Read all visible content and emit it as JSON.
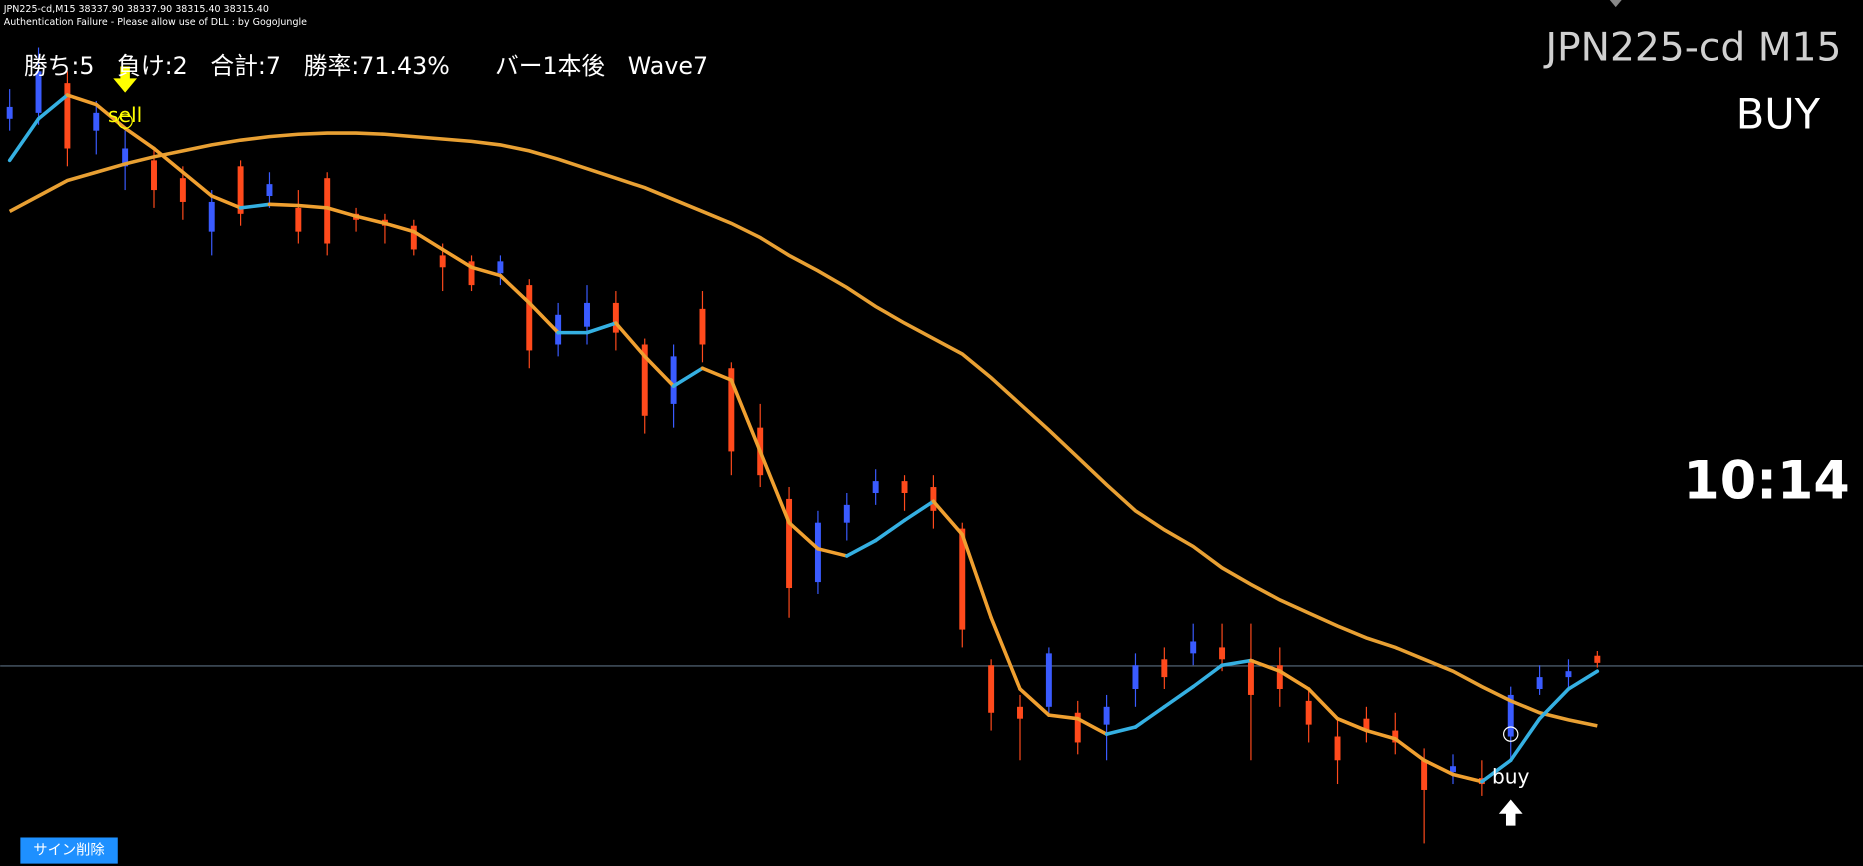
{
  "header": {
    "symbol_line": "JPN225-cd,M15  38337.90 38337.90 38315.40 38315.40",
    "notice": "Authentication Failure - Please allow use of DLL : by GogoJungle"
  },
  "stats": "勝ち:5   負け:2   合計:7   勝率:71.43%      バー1本後   Wave7",
  "symbol": "JPN225-cd M15",
  "signal": "BUY",
  "timer": "10:14",
  "button": "サイン削除",
  "chart_data": {
    "type": "candlestick",
    "open": [
      38776,
      38781,
      38806,
      38766,
      38736,
      38741,
      38726,
      38681,
      38736,
      38711,
      38701,
      38726,
      38696,
      38691,
      38686,
      38661,
      38656,
      38646,
      38636,
      38586,
      38601,
      38621,
      38586,
      38536,
      38616,
      38566,
      38516,
      38456,
      38386,
      38436,
      38461,
      38471,
      38466,
      38431,
      38316,
      38281,
      38281,
      38276,
      38266,
      38296,
      38321,
      38326,
      38331,
      38321,
      38316,
      38286,
      38256,
      38271,
      38261,
      38236,
      38226,
      38221,
      38256,
      38296,
      38306,
      38324
    ],
    "high": [
      38801,
      38836,
      38816,
      38791,
      38766,
      38751,
      38736,
      38716,
      38741,
      38731,
      38716,
      38731,
      38701,
      38696,
      38691,
      38671,
      38661,
      38661,
      38641,
      38621,
      38636,
      38631,
      38591,
      38586,
      38631,
      38571,
      38536,
      38466,
      38446,
      38461,
      38481,
      38476,
      38476,
      38436,
      38321,
      38291,
      38331,
      38286,
      38291,
      38326,
      38331,
      38351,
      38351,
      38351,
      38331,
      38296,
      38271,
      38281,
      38276,
      38246,
      38241,
      38236,
      38298,
      38316,
      38321,
      38328
    ],
    "low": [
      38766,
      38771,
      38736,
      38746,
      38716,
      38701,
      38691,
      38661,
      38686,
      38701,
      38671,
      38661,
      38681,
      38671,
      38661,
      38631,
      38631,
      38636,
      38566,
      38576,
      38586,
      38581,
      38511,
      38516,
      38571,
      38476,
      38466,
      38356,
      38376,
      38421,
      38451,
      38446,
      38431,
      38331,
      38261,
      38236,
      38276,
      38241,
      38236,
      38281,
      38296,
      38316,
      38311,
      38236,
      38281,
      38251,
      38216,
      38251,
      38241,
      38166,
      38216,
      38206,
      38236,
      38291,
      38296,
      38314
    ],
    "close": [
      38786,
      38816,
      38751,
      38781,
      38751,
      38716,
      38706,
      38706,
      38696,
      38721,
      38681,
      38671,
      38691,
      38686,
      38666,
      38651,
      38636,
      38656,
      38581,
      38611,
      38621,
      38596,
      38526,
      38576,
      38586,
      38496,
      38476,
      38381,
      38436,
      38451,
      38471,
      38461,
      38446,
      38346,
      38276,
      38271,
      38326,
      38251,
      38281,
      38316,
      38306,
      38336,
      38321,
      38291,
      38296,
      38266,
      38236,
      38261,
      38251,
      38211,
      38231,
      38216,
      38291,
      38306,
      38311,
      38318
    ],
    "up_color": "#3a5bff",
    "down_color": "#ff4a1c",
    "series": [
      {
        "color": "#e8a033",
        "values": [
          38698,
          38711,
          38724,
          38731,
          38738,
          38744,
          38749,
          38754,
          38758,
          38761,
          38763,
          38764,
          38764,
          38763,
          38761,
          38759,
          38757,
          38754,
          38749,
          38742,
          38734,
          38726,
          38718,
          38708,
          38698,
          38688,
          38676,
          38661,
          38648,
          38634,
          38618,
          38604,
          38591,
          38578,
          38558,
          38536,
          38514,
          38491,
          38468,
          38446,
          38430,
          38416,
          38398,
          38384,
          38371,
          38360,
          38349,
          38339,
          38331,
          38321,
          38311,
          38298,
          38286,
          38276,
          38270,
          38265
        ]
      },
      {
        "color": "#35b0e2",
        "falling_color": "#f0a030",
        "values": [
          38741,
          38776,
          38796,
          38788,
          38768,
          38751,
          38731,
          38711,
          38701,
          38704,
          38703,
          38701,
          38694,
          38688,
          38681,
          38666,
          38651,
          38644,
          38621,
          38596,
          38596,
          38604,
          38576,
          38551,
          38566,
          38556,
          38496,
          38436,
          38414,
          38408,
          38421,
          38438,
          38454,
          38426,
          38356,
          38296,
          38274,
          38271,
          38258,
          38264,
          38281,
          38298,
          38316,
          38320,
          38311,
          38296,
          38271,
          38261,
          38254,
          38236,
          38224,
          38218,
          38236,
          38271,
          38296,
          38311
        ]
      }
    ],
    "last_price": 38315.4,
    "ylim": [
      38147,
      38876
    ],
    "signals": [
      {
        "label": "sell",
        "bar": 4,
        "color": "#ffff00"
      },
      {
        "label": "buy",
        "bar": 52,
        "color": "#ffffff"
      }
    ]
  }
}
